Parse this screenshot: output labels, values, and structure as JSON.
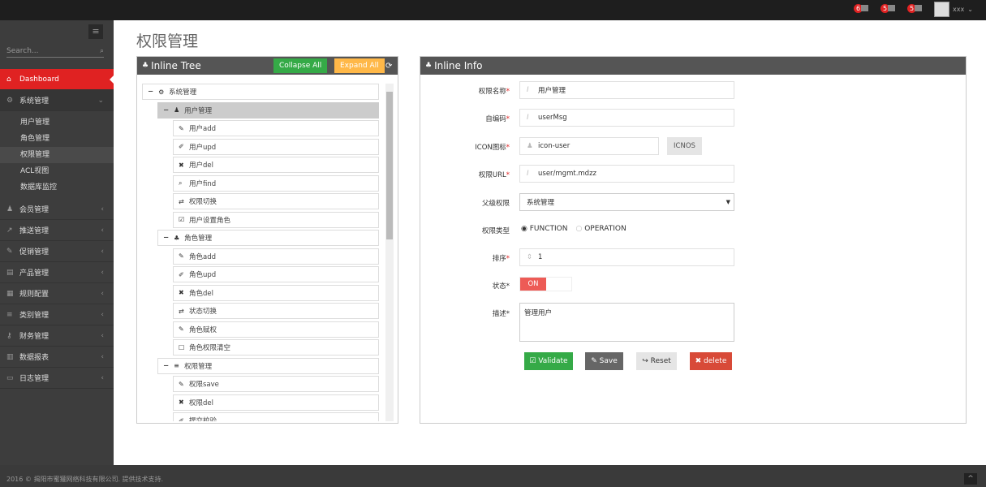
{
  "topbar": {
    "notifications": [
      {
        "count": "6",
        "icon": "bell-icon"
      },
      {
        "count": "5",
        "icon": "envelope-icon"
      },
      {
        "count": "5",
        "icon": "calendar-icon"
      }
    ],
    "user": "xxx"
  },
  "sidebar": {
    "search_placeholder": "Search...",
    "items": [
      {
        "label": "Dashboard",
        "icon": "home-icon",
        "active": true
      },
      {
        "label": "系统管理",
        "icon": "cogs-icon",
        "open": true,
        "children": [
          "用户管理",
          "角色管理",
          "权限管理",
          "ACL视图",
          "数据库监控"
        ],
        "selected_child": "权限管理"
      },
      {
        "label": "会员管理",
        "icon": "user-icon"
      },
      {
        "label": "推送管理",
        "icon": "share-icon"
      },
      {
        "label": "促销管理",
        "icon": "pencil-icon"
      },
      {
        "label": "产品管理",
        "icon": "book-icon"
      },
      {
        "label": "规则配置",
        "icon": "newspaper-icon"
      },
      {
        "label": "类别管理",
        "icon": "list-icon"
      },
      {
        "label": "财务管理",
        "icon": "key-icon"
      },
      {
        "label": "数据报表",
        "icon": "bar-chart-icon"
      },
      {
        "label": "日志管理",
        "icon": "credit-card-icon"
      }
    ]
  },
  "page_title": "权限管理",
  "tree": {
    "title": "Inline Tree",
    "collapse_label": "Collapse All",
    "expand_label": "Expand All",
    "colors": {
      "collapse": "#35aa47",
      "expand": "#ffb848"
    },
    "nodes": [
      {
        "label": "系统管理",
        "level": 0,
        "icon": "cogs-icon",
        "toggle": "−"
      },
      {
        "label": "用户管理",
        "level": 1,
        "icon": "user-icon",
        "toggle": "−",
        "selected": true
      },
      {
        "label": "用户add",
        "level": 2,
        "icon": "pencil-icon"
      },
      {
        "label": "用户upd",
        "level": 2,
        "icon": "edit-icon"
      },
      {
        "label": "用户del",
        "level": 2,
        "icon": "times-icon"
      },
      {
        "label": "用户find",
        "level": 2,
        "icon": "search-icon"
      },
      {
        "label": "权限切换",
        "level": 2,
        "icon": "retweet-icon"
      },
      {
        "label": "用户设置角色",
        "level": 2,
        "icon": "check-square-icon"
      },
      {
        "label": "角色管理",
        "level": 1,
        "icon": "sitemap-icon",
        "toggle": "−"
      },
      {
        "label": "角色add",
        "level": 2,
        "icon": "pencil-icon"
      },
      {
        "label": "角色upd",
        "level": 2,
        "icon": "edit-icon"
      },
      {
        "label": "角色del",
        "level": 2,
        "icon": "times-icon"
      },
      {
        "label": "状态切换",
        "level": 2,
        "icon": "retweet-icon"
      },
      {
        "label": "角色赋权",
        "level": 2,
        "icon": "pencil-icon"
      },
      {
        "label": "角色权限清空",
        "level": 2,
        "icon": "square-icon"
      },
      {
        "label": "权限管理",
        "level": 1,
        "icon": "list-icon",
        "toggle": "−"
      },
      {
        "label": "权限save",
        "level": 2,
        "icon": "pencil-icon"
      },
      {
        "label": "权限del",
        "level": 2,
        "icon": "times-icon"
      },
      {
        "label": "提交校验",
        "level": 2,
        "icon": "edit-icon"
      }
    ]
  },
  "info": {
    "title": "Inline Info",
    "fields": {
      "name": {
        "label": "权限名称",
        "value": "用户管理"
      },
      "code": {
        "label": "自编码",
        "value": "userMsg"
      },
      "icon": {
        "label": "ICON图标",
        "value": "icon-user",
        "button": "ICNOS"
      },
      "url": {
        "label": "权限URL",
        "value": "user/mgmt.mdzz"
      },
      "parent": {
        "label": "父级权限",
        "value": "系统管理"
      },
      "type": {
        "label": "权限类型",
        "options": [
          "FUNCTION",
          "OPERATION"
        ],
        "selected": "FUNCTION"
      },
      "order": {
        "label": "排序",
        "value": "1"
      },
      "status": {
        "label": "状态*",
        "value": "ON"
      },
      "desc": {
        "label": "描述*",
        "value": "管理用户"
      }
    },
    "buttons": {
      "validate": "Validate",
      "save": "Save",
      "reset": "Reset",
      "delete": "delete"
    }
  },
  "footer": "2016 © 揭阳市蜜獾网络科技有限公司. 提供技术支持."
}
